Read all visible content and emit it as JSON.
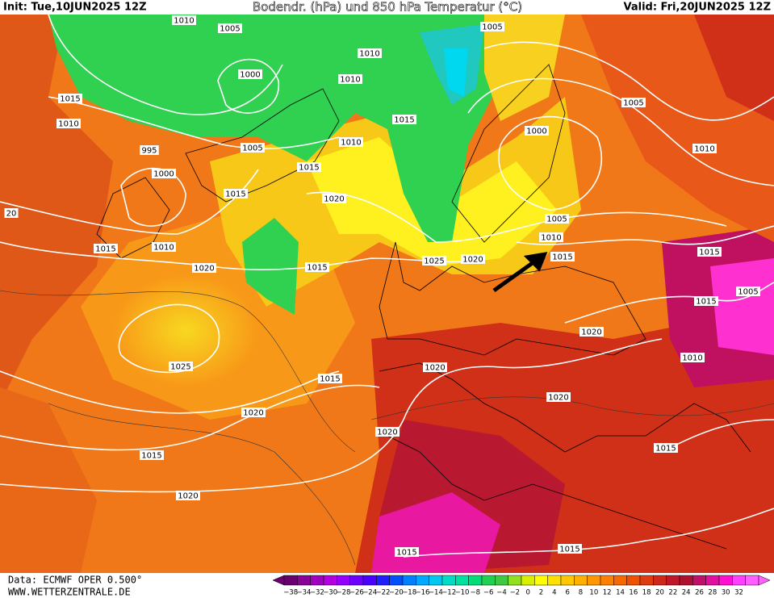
{
  "header": {
    "init": "Init: Tue,10JUN2025 12Z",
    "title": "Bodendr. (hPa) und 850 hPa Temperatur (°C)",
    "valid": "Valid: Fri,20JUN2025 12Z"
  },
  "isobar_labels": [
    1010,
    1005,
    1010,
    1000,
    1010,
    1015,
    1010,
    995,
    1005,
    1000,
    1015,
    1015,
    1010,
    1015,
    1005,
    1000,
    1005,
    1010,
    1020,
    1015,
    1010,
    1020,
    1015,
    1025,
    1020,
    1005,
    1010,
    1015,
    1015,
    1005,
    1015,
    1020,
    1010,
    1025,
    1015,
    1020,
    1020,
    1020,
    1020,
    1015,
    1015,
    1020,
    1015,
    1015,
    20
  ],
  "colorbar": {
    "labels": [
      "−38",
      "−34",
      "−32",
      "−30",
      "−28",
      "−26",
      "−24",
      "−22",
      "−20",
      "−18",
      "−16",
      "−14",
      "−12",
      "−10",
      "−8",
      "−6",
      "−4",
      "−2",
      "0",
      "2",
      "4",
      "6",
      "8",
      "10",
      "12",
      "14",
      "16",
      "18",
      "20",
      "22",
      "24",
      "26",
      "28",
      "30",
      "32"
    ],
    "colors": [
      "#6a0070",
      "#8a0099",
      "#a000c0",
      "#b400e0",
      "#9600ff",
      "#6e00ff",
      "#4b00ff",
      "#2020ff",
      "#0050ff",
      "#0080ff",
      "#00a8ff",
      "#00c8f0",
      "#00dcc8",
      "#00e0a0",
      "#00dc78",
      "#20d050",
      "#40c840",
      "#90e020",
      "#d8f000",
      "#ffff00",
      "#ffe000",
      "#ffc800",
      "#ffb000",
      "#ff9800",
      "#ff8000",
      "#f86800",
      "#f05000",
      "#e03c10",
      "#d02818",
      "#c01828",
      "#b01030",
      "#c0106a",
      "#e010a0",
      "#ff10d0",
      "#ff40ff",
      "#ff60ff"
    ]
  },
  "footer": {
    "data": "Data: ECMWF OPER 0.500°",
    "site": "WWW.WETTERZENTRALE.DE"
  }
}
